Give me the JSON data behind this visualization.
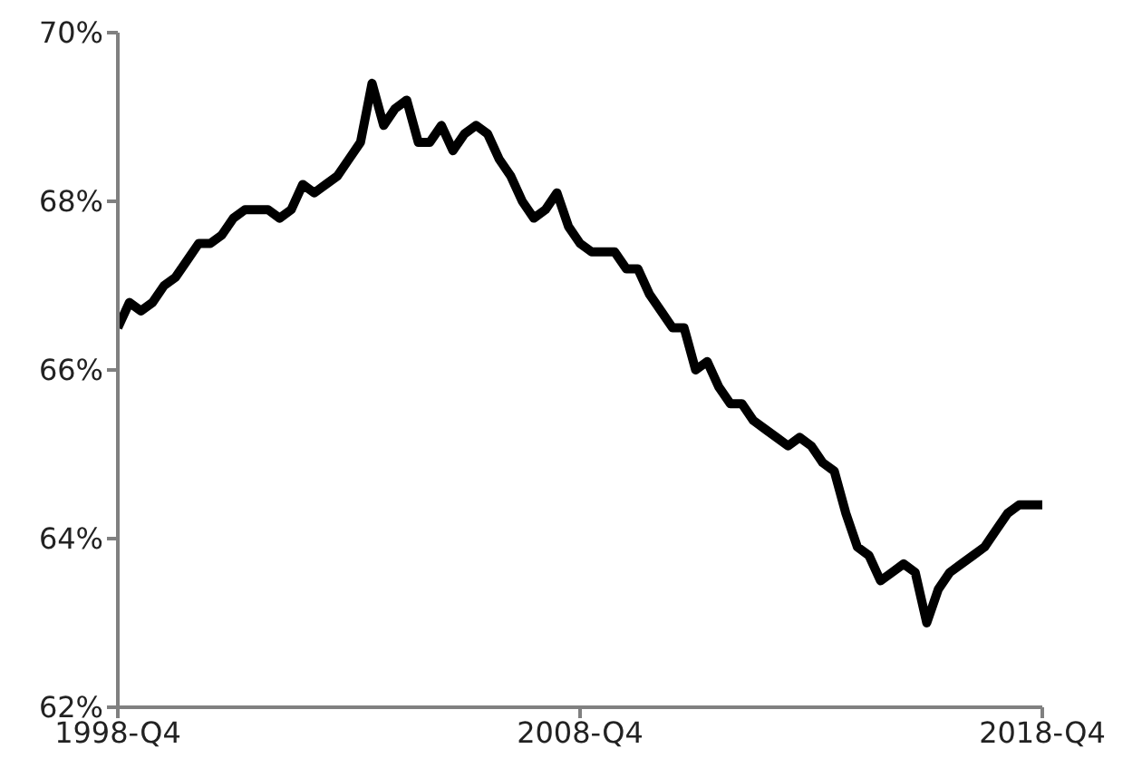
{
  "chart_data": {
    "type": "line",
    "categories": [
      "1998-Q4",
      null,
      null,
      null,
      null,
      null,
      null,
      null,
      null,
      null,
      null,
      null,
      null,
      null,
      null,
      null,
      null,
      null,
      null,
      null,
      null,
      null,
      null,
      null,
      null,
      null,
      null,
      null,
      null,
      null,
      null,
      null,
      null,
      null,
      null,
      null,
      null,
      null,
      null,
      null,
      "2008-Q4",
      null,
      null,
      null,
      null,
      null,
      null,
      null,
      null,
      null,
      null,
      null,
      null,
      null,
      null,
      null,
      null,
      null,
      null,
      null,
      null,
      null,
      null,
      null,
      null,
      null,
      null,
      null,
      null,
      null,
      null,
      null,
      null,
      null,
      null,
      null,
      null,
      null,
      null,
      null,
      "2018-Q4"
    ],
    "series": [
      {
        "color": "#000000",
        "values": [
          66.5,
          66.8,
          66.7,
          66.8,
          67.0,
          67.1,
          67.3,
          67.5,
          67.5,
          67.6,
          67.8,
          67.9,
          67.9,
          67.9,
          67.8,
          67.9,
          68.2,
          68.1,
          68.2,
          68.3,
          68.5,
          68.7,
          69.4,
          68.9,
          69.1,
          69.2,
          68.7,
          68.7,
          68.9,
          68.6,
          68.8,
          68.9,
          68.8,
          68.5,
          68.3,
          68.0,
          67.8,
          67.9,
          68.1,
          67.7,
          67.5,
          67.4,
          67.4,
          67.4,
          67.2,
          67.2,
          66.9,
          66.7,
          66.5,
          66.5,
          66.0,
          66.1,
          65.8,
          65.6,
          65.6,
          65.4,
          65.3,
          65.2,
          65.1,
          65.2,
          65.1,
          64.9,
          64.8,
          64.3,
          63.9,
          63.8,
          63.5,
          63.6,
          63.7,
          63.6,
          63.0,
          63.4,
          63.6,
          63.7,
          63.8,
          63.9,
          64.1,
          64.3,
          64.4,
          64.4,
          64.4
        ]
      }
    ],
    "ylim": [
      62,
      70
    ],
    "yticks": [
      {
        "value": 62,
        "label": "62%"
      },
      {
        "value": 64,
        "label": "64%"
      },
      {
        "value": 66,
        "label": "66%"
      },
      {
        "value": 68,
        "label": "68%"
      },
      {
        "value": 70,
        "label": "70%"
      }
    ],
    "grid": false,
    "legend": false,
    "marker": "none",
    "line_style": "solid"
  }
}
